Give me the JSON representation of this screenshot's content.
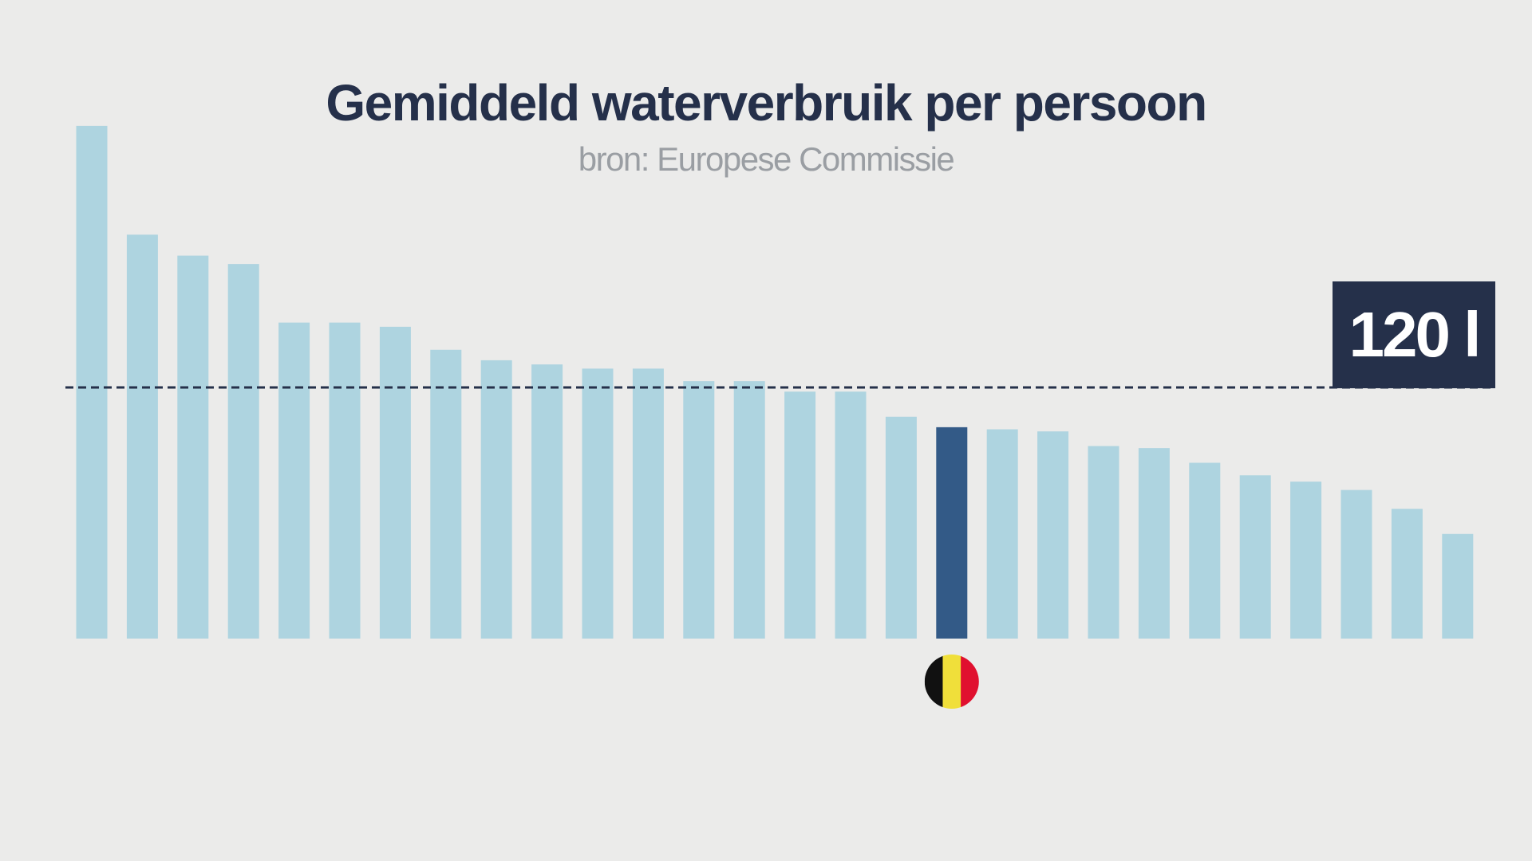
{
  "chart_data": {
    "type": "bar",
    "title": "Gemiddeld waterverbruik per persoon",
    "subtitle": "bron: Europese Commissie",
    "values": [
      245,
      193,
      183,
      179,
      151,
      151,
      149,
      138,
      133,
      131,
      129,
      129,
      123,
      123,
      118,
      118,
      106,
      101,
      100,
      99,
      92,
      91,
      84,
      78,
      75,
      71,
      62,
      50
    ],
    "highlight_index": 17,
    "highlight_label": "Belgium flag",
    "reference_line": {
      "value": 120,
      "label": "120 l",
      "style": "dashed"
    },
    "ylim": [
      0,
      250
    ],
    "grid": false,
    "colors": {
      "bar": "#aed4e0",
      "highlight": "#335a87",
      "reference": "#25304a",
      "background": "#ebebea"
    },
    "flag_colors": [
      "#111111",
      "#f0df3a",
      "#e0102f"
    ]
  }
}
